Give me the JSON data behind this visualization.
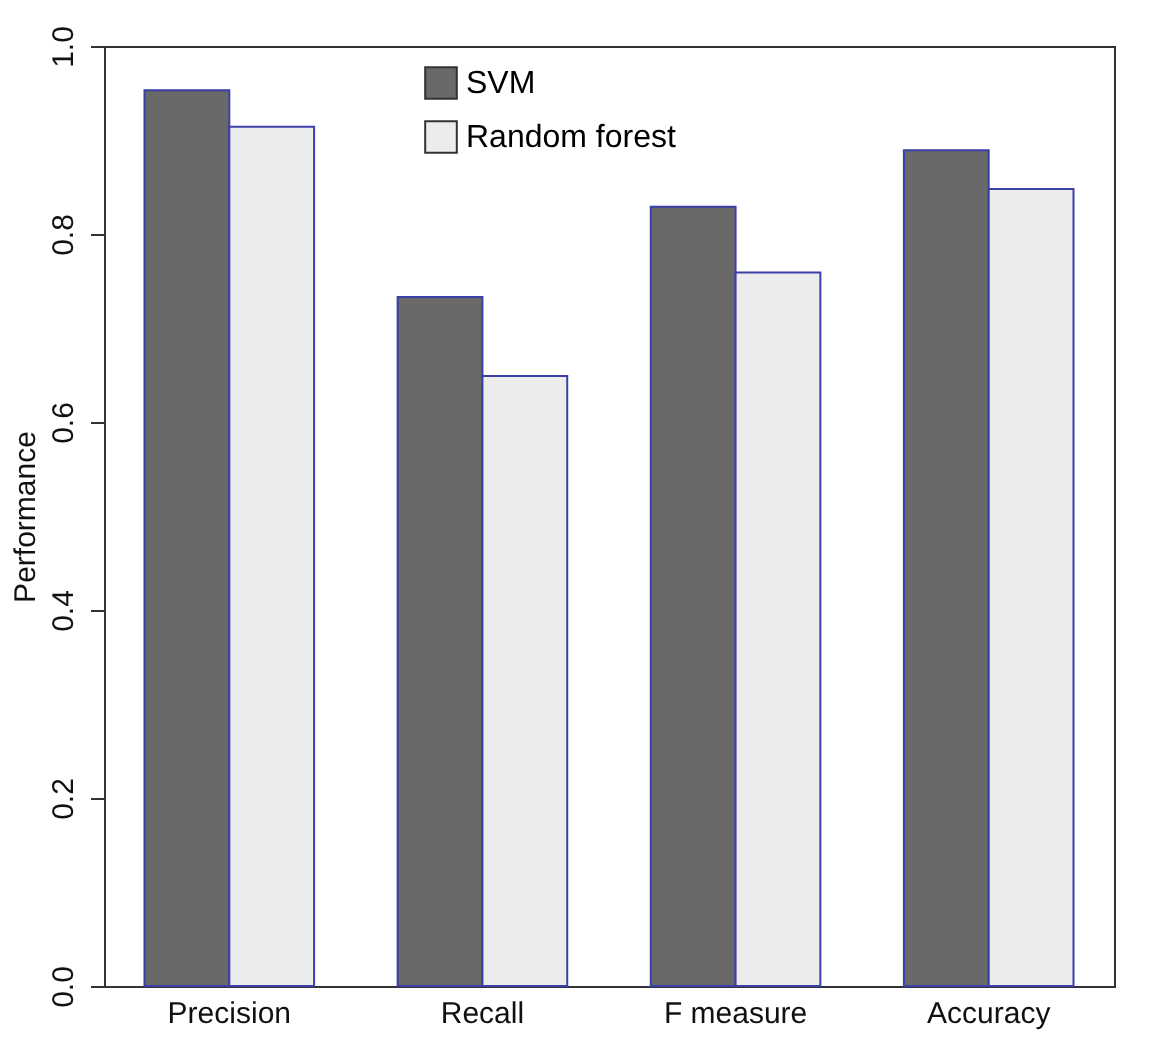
{
  "chart_data": {
    "type": "bar",
    "ylabel": "Performance",
    "categories": [
      "Precision",
      "Recall",
      "F measure",
      "Accuracy"
    ],
    "series": [
      {
        "name": "SVM",
        "color": "#696969",
        "values": [
          0.953,
          0.733,
          0.829,
          0.889
        ]
      },
      {
        "name": "Random forest",
        "color": "#ebeceb",
        "values": [
          0.914,
          0.649,
          0.759,
          0.848
        ]
      }
    ],
    "ylim": [
      0,
      1
    ],
    "yticks": [
      {
        "value": 0,
        "label": "0.0"
      },
      0.2,
      0.4,
      0.6,
      0.8,
      {
        "value": 1,
        "label": "1.0"
      }
    ],
    "grid": false,
    "legend": "top"
  }
}
